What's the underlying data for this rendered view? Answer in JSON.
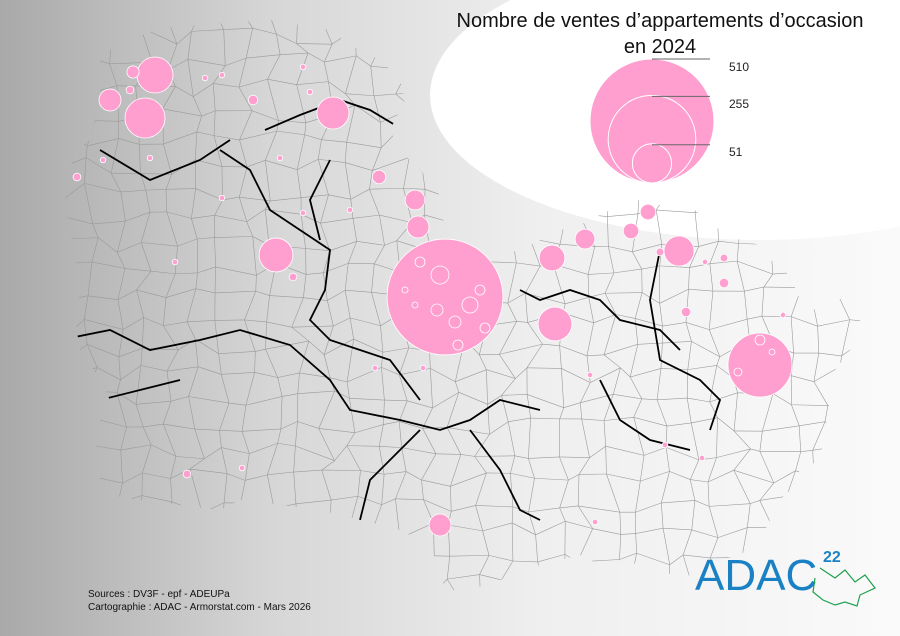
{
  "title": {
    "line1": "Nombre de ventes d’appartements d’occasion",
    "line2": "en 2024"
  },
  "legend": {
    "values": [
      510,
      255,
      51
    ],
    "labels": [
      "510",
      "255",
      "51"
    ]
  },
  "colors": {
    "circle_fill": "#ff9fd0",
    "circle_stroke": "#ffffff",
    "boundary": "#000000",
    "commune_border": "#9a9a9a",
    "logo_blue": "#1a82c4",
    "logo_green": "#1fa050"
  },
  "sales_circles_values": [
    43,
    5,
    16,
    53,
    2,
    1,
    1,
    3,
    1,
    1,
    34,
    1,
    1,
    2,
    1,
    1,
    6,
    13,
    16,
    1,
    1,
    38,
    2,
    1,
    445,
    22,
    13,
    8,
    8,
    30,
    2,
    1,
    2,
    3,
    3,
    38,
    136,
    1,
    1,
    1,
    1,
    2,
    16,
    1,
    1,
    1,
    1
  ],
  "sources": {
    "line1": "Sources : DV3F - epf - ADEUPa",
    "line2": "Cartographie : ADAC - Armorstat.com - Mars 2026"
  },
  "logo": {
    "text": "ADAC",
    "superscript": "22"
  }
}
